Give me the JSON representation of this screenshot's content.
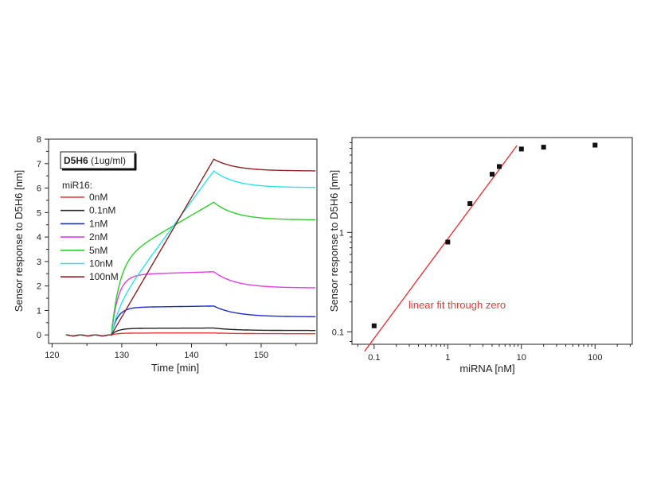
{
  "chart_data": [
    {
      "type": "line",
      "xlabel": "Time [min]",
      "ylabel": "Sensor response to D5H6 [nm]",
      "xlim": [
        119.5,
        158
      ],
      "ylim": [
        -0.35,
        8
      ],
      "xticks": [
        120,
        130,
        140,
        150
      ],
      "yticks": [
        0,
        1,
        2,
        3,
        4,
        5,
        6,
        7,
        8
      ],
      "legend_box": {
        "bold": "D5H6",
        "normal": " (1ug/ml)"
      },
      "legend_title": "miR16:",
      "series": [
        {
          "name": "0nM",
          "color": "#e8383a",
          "plateau": 0.08,
          "post": 0.05
        },
        {
          "name": "0.1nM",
          "color": "#222222",
          "plateau": 0.28,
          "post": 0.18
        },
        {
          "name": "1nM",
          "color": "#1f2ad4",
          "plateau": 1.18,
          "post": 0.74
        },
        {
          "name": "2nM",
          "color": "#e23de6",
          "plateau": 2.58,
          "post": 1.92
        },
        {
          "name": "5nM",
          "color": "#2ad12a",
          "plateau": 5.42,
          "post": 4.7
        },
        {
          "name": "10nM",
          "color": "#28e6e6",
          "plateau": 6.7,
          "post": 6.02
        },
        {
          "name": "100nM",
          "color": "#8b2323",
          "plateau": 7.18,
          "post": 6.7
        }
      ]
    },
    {
      "type": "scatter",
      "xscale": "log",
      "yscale": "log",
      "xlabel": "miRNA [nM]",
      "ylabel": "Sensor response to D5H6 [nm]",
      "xlim": [
        0.05,
        320
      ],
      "ylim": [
        0.075,
        9
      ],
      "xticks": [
        0.1,
        1,
        10,
        100
      ],
      "xtick_labels": [
        "0.1",
        "1",
        "10",
        "100"
      ],
      "yticks": [
        0.1,
        1
      ],
      "ytick_labels": [
        "0.1",
        "1"
      ],
      "points": [
        {
          "x": 0.1,
          "y": 0.115
        },
        {
          "x": 1,
          "y": 0.8
        },
        {
          "x": 2,
          "y": 1.95
        },
        {
          "x": 4,
          "y": 3.85
        },
        {
          "x": 5,
          "y": 4.6
        },
        {
          "x": 10,
          "y": 6.9
        },
        {
          "x": 20,
          "y": 7.2
        },
        {
          "x": 100,
          "y": 7.55
        }
      ],
      "fit": {
        "label": "linear fit through zero",
        "color": "#e8383a",
        "slope": 0.86,
        "x_range": [
          0.074,
          8.7
        ]
      }
    }
  ]
}
